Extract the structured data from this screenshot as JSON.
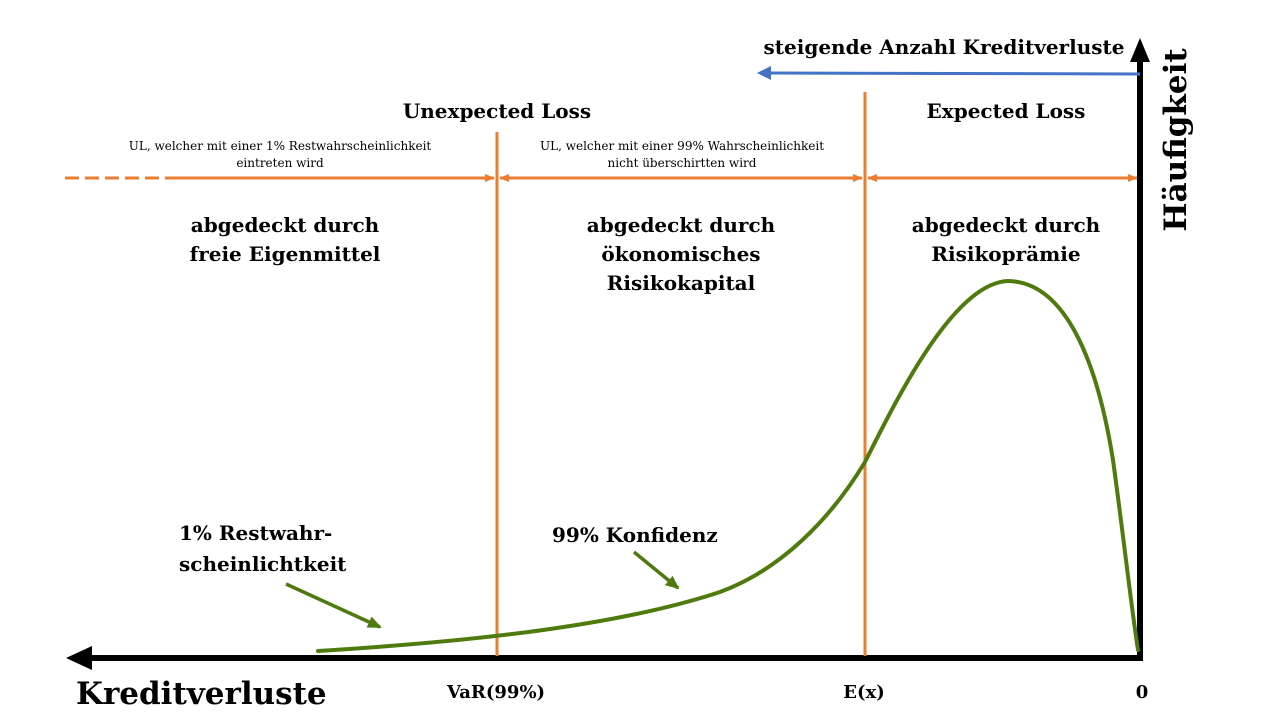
{
  "labels": {
    "direction": "steigende Anzahl Kreditverluste",
    "y_axis": "Häufigkeit",
    "x_axis": "Kreditverluste",
    "zero": "0",
    "var": "VaR(99%)",
    "ex": "E(x)",
    "unexpected": "Unexpected Loss",
    "expected": "Expected Loss"
  },
  "regions": {
    "tail": {
      "desc_line1": "UL, welcher mit einer 1% Restwahrscheinlichkeit",
      "desc_line2": "eintreten wird",
      "cover_line1": "abgedeckt durch",
      "cover_line2": "freie Eigenmittel"
    },
    "middle": {
      "desc_line1": "UL, welcher mit einer 99% Wahrscheinlichkeit",
      "desc_line2": "nicht überschirtten wird",
      "cover_line1": "abgedeckt durch",
      "cover_line2": "ökonomisches",
      "cover_line3": "Risikokapital"
    },
    "expected": {
      "cover_line1": "abgedeckt durch",
      "cover_line2": "Risikoprämie"
    }
  },
  "annotations": {
    "rest_line1": "1% Restwahr-",
    "rest_line2": "scheinlichtkeit",
    "confidence": "99% Konfidenz"
  },
  "colors": {
    "axis": "#000000",
    "divider": "#ED7D31",
    "curve": "#4E7A0E",
    "direction_arrow": "#4472C4"
  }
}
